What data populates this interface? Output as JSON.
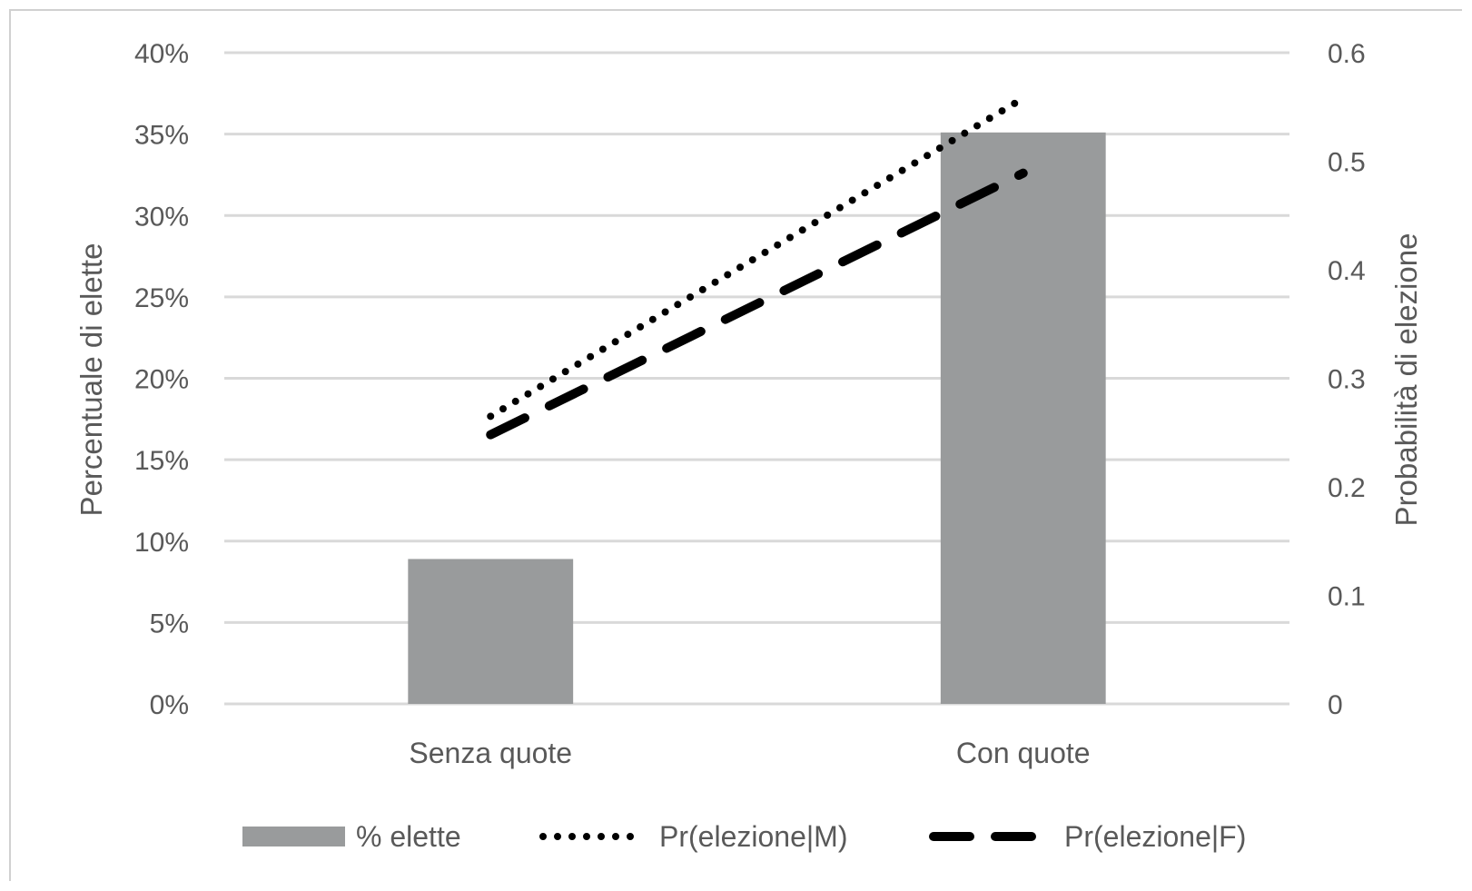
{
  "chart_data": {
    "type": "bar",
    "categories": [
      "Senza quote",
      "Con quote"
    ],
    "title": "",
    "xlabel": "",
    "ylabel": "Percentuale di elette",
    "y2label": "Probabilità di elezione",
    "ylim": [
      0,
      0.4
    ],
    "y2lim": [
      0,
      0.6
    ],
    "yticks": [
      "0%",
      "5%",
      "10%",
      "15%",
      "20%",
      "25%",
      "30%",
      "35%",
      "40%"
    ],
    "y2ticks": [
      "0",
      "0.1",
      "0.2",
      "0.3",
      "0.4",
      "0.5",
      "0.6"
    ],
    "grid": true,
    "legend": "bottom",
    "series": [
      {
        "name": "% elette",
        "kind": "bar",
        "axis": "left",
        "color": "#999b9c",
        "values": [
          0.089,
          0.351
        ]
      },
      {
        "name": "Pr(elezione|M)",
        "kind": "line",
        "style": "dotted",
        "axis": "right",
        "color": "#000000",
        "values": [
          0.265,
          0.558
        ]
      },
      {
        "name": "Pr(elezione|F)",
        "kind": "line",
        "style": "dashed",
        "axis": "right",
        "color": "#000000",
        "values": [
          0.248,
          0.489
        ]
      }
    ]
  }
}
